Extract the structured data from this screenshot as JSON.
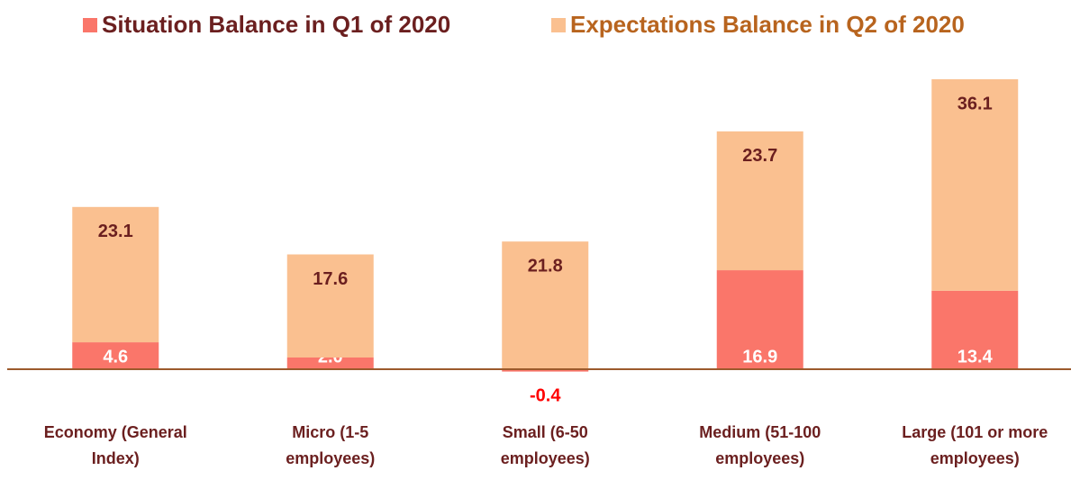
{
  "chart_data": {
    "type": "stacked_bar",
    "categories": [
      "Economy (General\nIndex)",
      "Micro (1-5\nemployees)",
      "Small (6-50\nemployees)",
      "Medium (51-100\nemployees)",
      "Large (101 or more\nemployees)"
    ],
    "series": [
      {
        "name": "Situation Balance in Q1 of 2020",
        "color": "#fa766a",
        "values": [
          4.6,
          2.0,
          -0.4,
          16.9,
          13.4
        ],
        "value_labels": [
          "4.6",
          "2.0",
          "-0.4",
          "16.9",
          "13.4"
        ]
      },
      {
        "name": "Expectations Balance in Q2 of 2020",
        "color": "#fac090",
        "values": [
          23.1,
          17.6,
          21.8,
          23.7,
          36.1
        ]
      }
    ],
    "legend": "top"
  }
}
